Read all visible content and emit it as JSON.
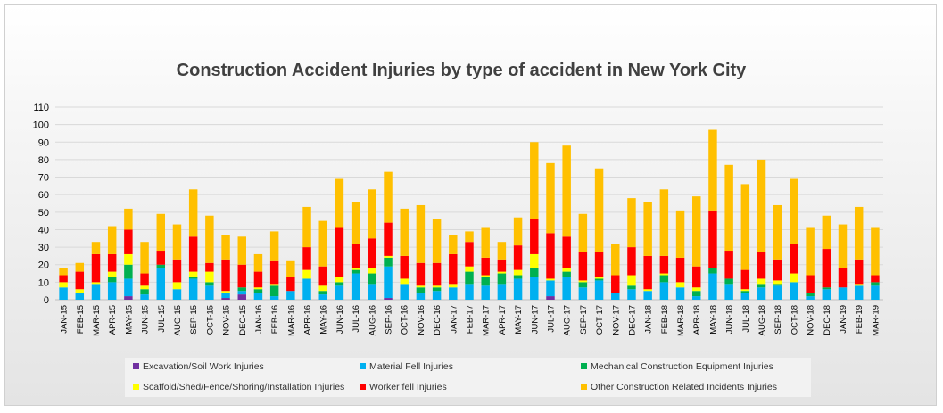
{
  "chart_data": {
    "type": "bar",
    "stacked": true,
    "title": "Construction Accident Injuries by type of accident in New York City",
    "xlabel": "",
    "ylabel": "",
    "ylim": [
      0,
      110
    ],
    "yticks": [
      0,
      10,
      20,
      30,
      40,
      50,
      60,
      70,
      80,
      90,
      100,
      110
    ],
    "grid": true,
    "legend_position": "bottom",
    "categories": [
      "JAN-15",
      "FEB-15",
      "MAR-15",
      "APR-15",
      "MAY-15",
      "JUN-15",
      "JUL-15",
      "AUG-15",
      "SEP-15",
      "OCT-15",
      "NOV-15",
      "DEC-15",
      "JAN-16",
      "FEB-16",
      "MAR-16",
      "APR-16",
      "MAY-16",
      "JUN-16",
      "JUL-16",
      "AUG-16",
      "SEP-16",
      "OCT-16",
      "NOV-16",
      "DEC-16",
      "JAN-17",
      "FEB-17",
      "MAR-17",
      "APR-17",
      "MAY-17",
      "JUN-17",
      "JUL-17",
      "AUG-17",
      "SEP-17",
      "OCT-17",
      "NOV-17",
      "DEC-17",
      "JAN-18",
      "FEB-18",
      "MAR-18",
      "APR-18",
      "MAY-18",
      "JUN-18",
      "JUL-18",
      "AUG-18",
      "SEP-18",
      "OCT-18",
      "NOV-18",
      "DEC-18",
      "JAN-19",
      "FEB-19",
      "MAR-19"
    ],
    "series": [
      {
        "name": "Excavation/Soil Work Injuries",
        "color": "#7030a0",
        "values": [
          0,
          0,
          0,
          0,
          2,
          0,
          0,
          0,
          0,
          0,
          1,
          3,
          0,
          0,
          0,
          0,
          0,
          0,
          0,
          0,
          1,
          0,
          0,
          0,
          0,
          0,
          0,
          0,
          0,
          0,
          2,
          0,
          0,
          0,
          0,
          0,
          0,
          0,
          0,
          0,
          0,
          0,
          0,
          0,
          0,
          0,
          0,
          0,
          0,
          0,
          0
        ]
      },
      {
        "name": "Material Fell Injuries",
        "color": "#00b0f0",
        "values": [
          7,
          4,
          9,
          10,
          10,
          3,
          18,
          6,
          12,
          8,
          3,
          2,
          4,
          2,
          5,
          12,
          3,
          8,
          15,
          9,
          18,
          9,
          4,
          5,
          7,
          9,
          8,
          9,
          12,
          13,
          9,
          13,
          7,
          11,
          4,
          6,
          5,
          10,
          7,
          2,
          15,
          9,
          4,
          7,
          8,
          10,
          2,
          6,
          7,
          8,
          8
        ]
      },
      {
        "name": "Mechanical Construction Equipment Injuries",
        "color": "#00b050",
        "values": [
          0,
          0,
          0,
          3,
          8,
          3,
          2,
          0,
          1,
          2,
          0,
          2,
          2,
          6,
          0,
          0,
          2,
          2,
          2,
          6,
          5,
          0,
          3,
          2,
          0,
          7,
          5,
          6,
          2,
          5,
          0,
          3,
          3,
          1,
          0,
          2,
          0,
          4,
          0,
          3,
          3,
          3,
          1,
          2,
          1,
          0,
          2,
          1,
          0,
          0,
          2
        ]
      },
      {
        "name": "Scaffold/Shed/Fence/Shoring/Installation Injuries",
        "color": "#ffff00",
        "values": [
          3,
          2,
          1,
          3,
          6,
          2,
          0,
          4,
          3,
          6,
          1,
          0,
          1,
          1,
          0,
          5,
          3,
          3,
          1,
          3,
          1,
          3,
          1,
          1,
          2,
          3,
          1,
          1,
          3,
          8,
          1,
          2,
          1,
          1,
          0,
          6,
          1,
          1,
          3,
          2,
          0,
          0,
          1,
          3,
          2,
          5,
          0,
          0,
          0,
          1,
          0
        ]
      },
      {
        "name": "Worker fell Injuries",
        "color": "#ff0000",
        "values": [
          4,
          10,
          16,
          10,
          14,
          7,
          8,
          13,
          20,
          5,
          18,
          13,
          9,
          13,
          8,
          13,
          11,
          28,
          14,
          17,
          19,
          13,
          13,
          13,
          17,
          14,
          10,
          7,
          14,
          20,
          26,
          18,
          16,
          14,
          10,
          16,
          19,
          10,
          14,
          12,
          33,
          16,
          11,
          15,
          12,
          17,
          10,
          22,
          11,
          14,
          4
        ]
      },
      {
        "name": "Other Construction Related Incidents Injuries",
        "color": "#ffc000",
        "values": [
          4,
          5,
          7,
          16,
          12,
          18,
          21,
          20,
          27,
          27,
          14,
          16,
          10,
          17,
          9,
          23,
          26,
          28,
          24,
          28,
          29,
          27,
          33,
          25,
          11,
          6,
          17,
          10,
          16,
          44,
          40,
          52,
          22,
          48,
          18,
          28,
          31,
          38,
          27,
          40,
          46,
          49,
          49,
          53,
          31,
          37,
          27,
          19,
          25,
          30,
          27
        ]
      }
    ]
  }
}
